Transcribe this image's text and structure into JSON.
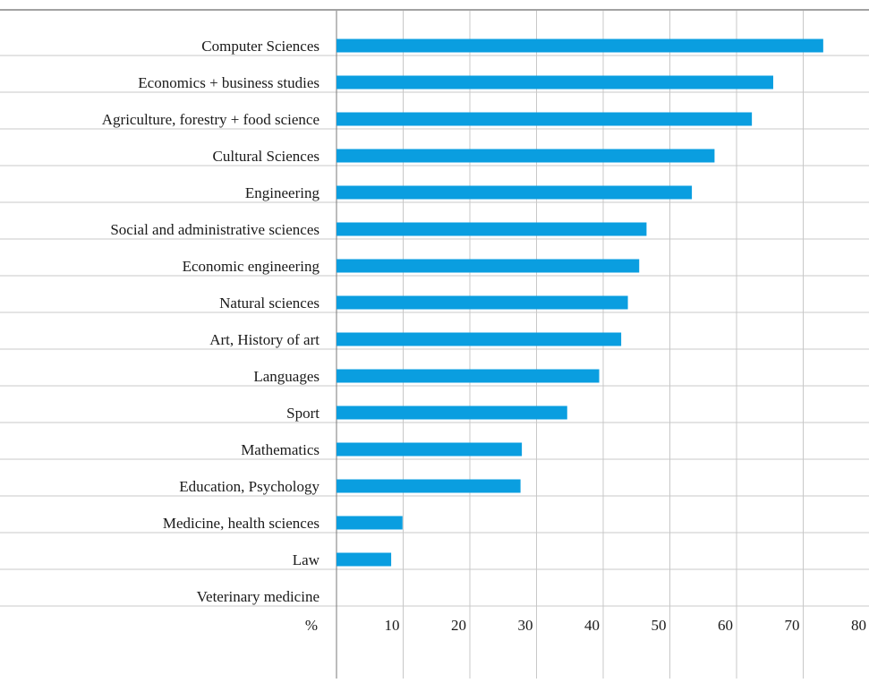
{
  "chart_data": {
    "type": "bar",
    "orientation": "horizontal",
    "title": "",
    "xlabel": "",
    "ylabel": "",
    "axis_unit_label": "%",
    "categories": [
      "Computer Sciences",
      "Economics + business studies",
      "Agriculture, forestry + food science",
      "Cultural Sciences",
      "Engineering",
      "Social and administrative sciences",
      "Economic engineering",
      "Natural sciences",
      "Art, History of art",
      "Languages",
      "Sport",
      "Mathematics",
      "Education, Psychology",
      "Medicine, health sciences",
      "Law",
      "Veterinary medicine"
    ],
    "values": [
      73,
      65.5,
      62.3,
      56.7,
      53.3,
      46.5,
      45.4,
      43.7,
      42.7,
      39.4,
      34.6,
      27.8,
      27.6,
      9.9,
      8.2,
      0
    ],
    "xlim": [
      0,
      80
    ],
    "xticks": [
      10,
      20,
      30,
      40,
      50,
      60,
      70,
      80
    ],
    "grid": true,
    "legend": "none",
    "colors": {
      "bar": "#0a9ee0",
      "grid": "#c8c8c8",
      "axis": "#7a7a7a",
      "text": "#1a1a1a"
    }
  }
}
